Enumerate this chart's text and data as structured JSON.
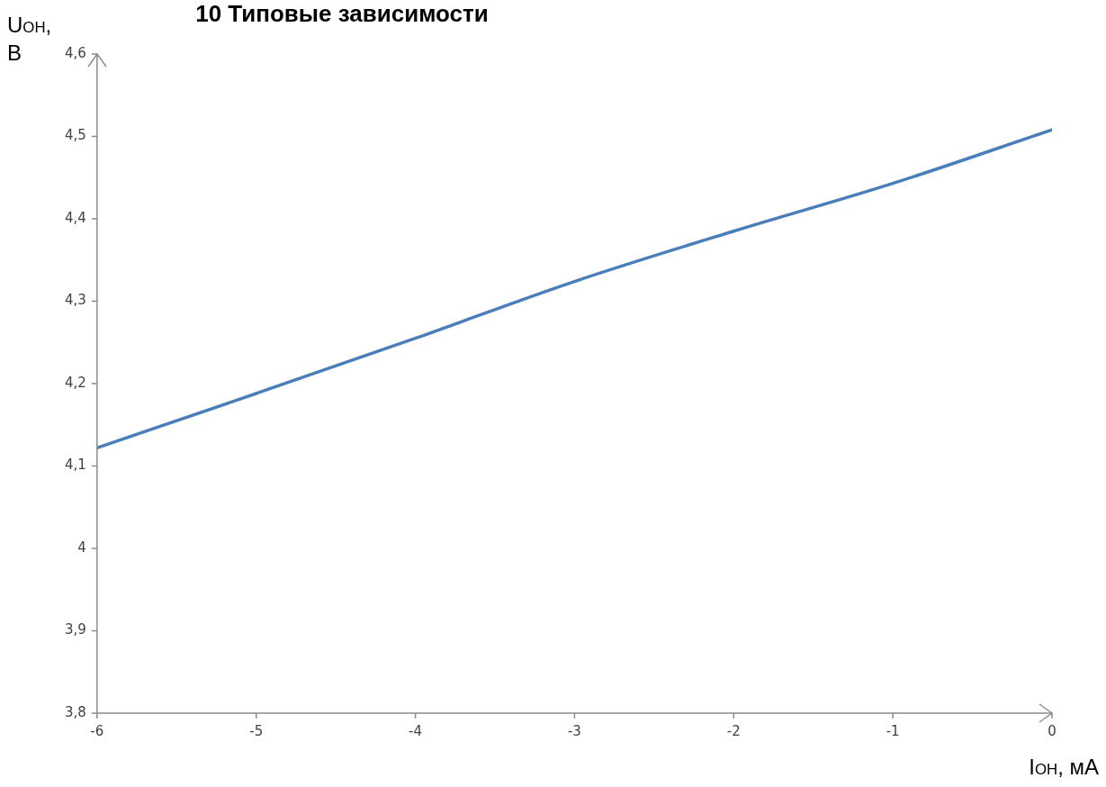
{
  "chart_data": {
    "type": "line",
    "title": "10 Типовые зависимости",
    "xlabel": "I$_{ОН}$, мА",
    "ylabel": "U$_{ОН}$, В",
    "x": [
      -6,
      -5,
      -4,
      -3,
      -2,
      -1,
      0
    ],
    "series": [
      {
        "color": "#4a7ebb",
        "values": [
          4.122,
          4.188,
          4.255,
          4.324,
          4.385,
          4.443,
          4.508
        ]
      }
    ],
    "xlim": [
      -6,
      0
    ],
    "xticks": [
      -6,
      -5,
      -4,
      -3,
      -2,
      -1,
      0
    ],
    "ylim": [
      3.8,
      4.6
    ],
    "yticks": [
      {
        "value": 3.8,
        "label": "3,8"
      },
      {
        "value": 3.9,
        "label": "3,9"
      },
      {
        "value": 4,
        "label": "4"
      },
      {
        "value": 4.1,
        "label": "4,1"
      },
      {
        "value": 4.2,
        "label": "4,2"
      },
      {
        "value": 4.3,
        "label": "4,3"
      },
      {
        "value": 4.4,
        "label": "4,4"
      },
      {
        "value": 4.5,
        "label": "4,5"
      },
      {
        "value": 4.6,
        "label": "4,6"
      }
    ],
    "grid": false,
    "legend": false,
    "marker": "none",
    "line_style": "solid"
  }
}
